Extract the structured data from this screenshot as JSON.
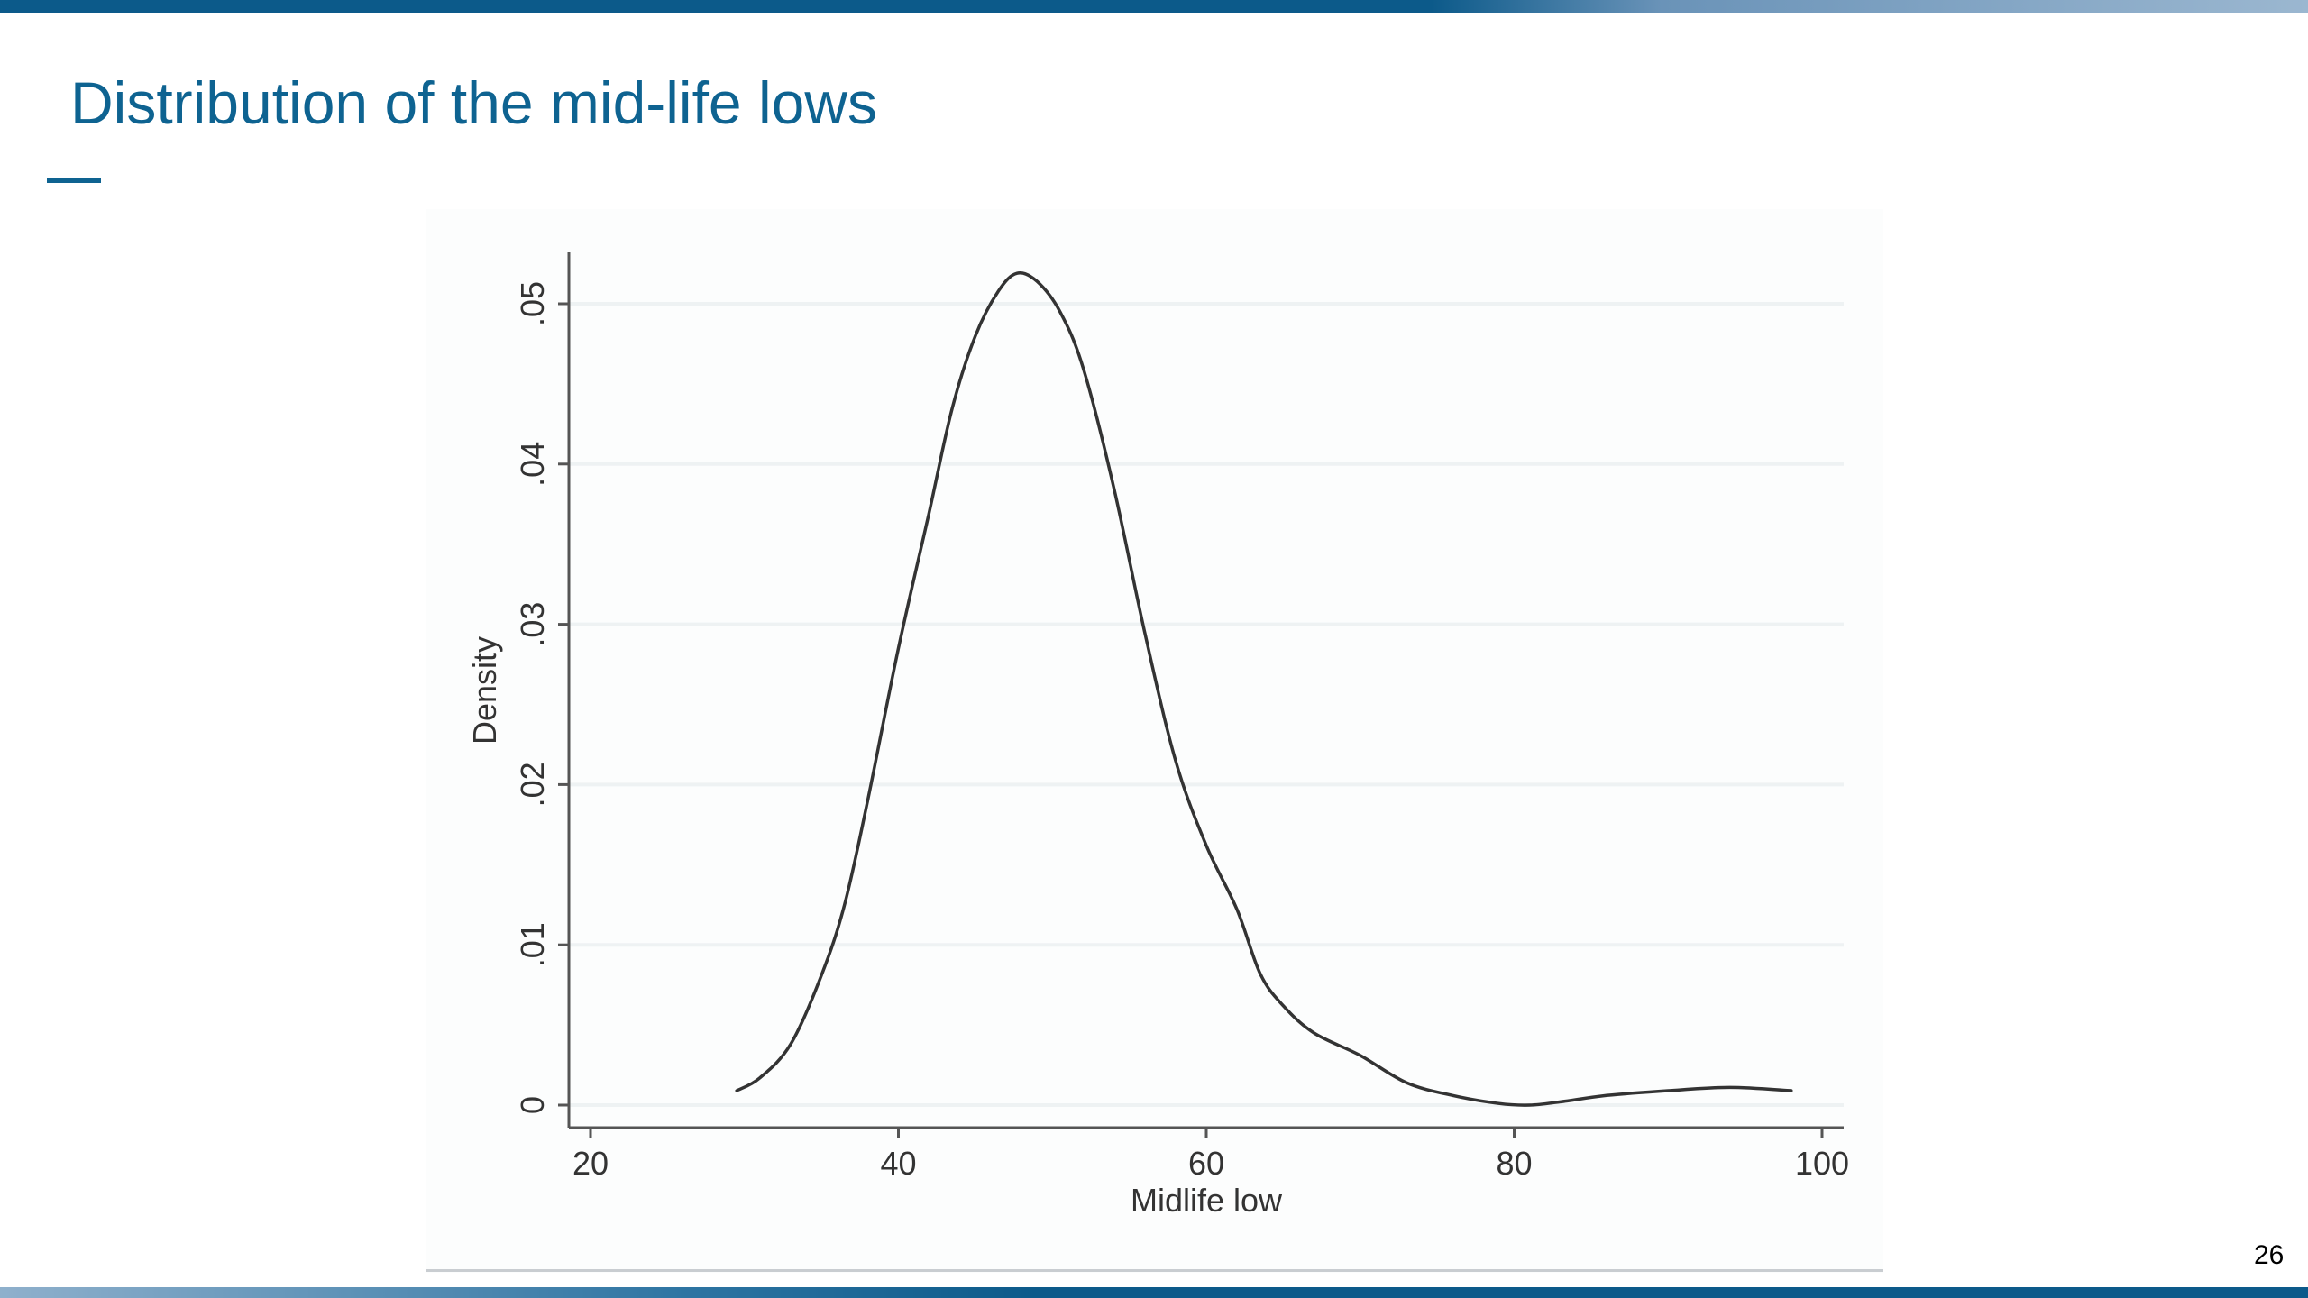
{
  "slide": {
    "title": "Distribution of the mid-life lows",
    "page_number": "26"
  },
  "colors": {
    "title": "#0e6391",
    "bar": "#0c5a8a",
    "curve": "#333333",
    "grid": "#eef2f3"
  },
  "chart_data": {
    "type": "line",
    "title": "",
    "xlabel": "Midlife low",
    "ylabel": "Density",
    "xlim": [
      20,
      100
    ],
    "ylim": [
      0,
      0.05
    ],
    "x_ticks": [
      20,
      40,
      60,
      80,
      100
    ],
    "x_tick_labels": [
      "20",
      "40",
      "60",
      "80",
      "100"
    ],
    "y_ticks": [
      0,
      0.01,
      0.02,
      0.03,
      0.04,
      0.05
    ],
    "y_tick_labels": [
      "0",
      ".01",
      ".02",
      ".03",
      ".04",
      ".05"
    ],
    "grid": true,
    "legend": "none",
    "series": [
      {
        "x": [
          29.5,
          31,
          33,
          35,
          36.5,
          38,
          40,
          42,
          43.5,
          45,
          46.5,
          47.7,
          49,
          50.5,
          52,
          54,
          56,
          58,
          60,
          62,
          63.5,
          65,
          67,
          70,
          73,
          76,
          79,
          81,
          83,
          86,
          90,
          94,
          98
        ],
        "y": [
          0.0009,
          0.0017,
          0.0038,
          0.0081,
          0.0125,
          0.019,
          0.0285,
          0.037,
          0.0435,
          0.048,
          0.0508,
          0.0519,
          0.0514,
          0.0495,
          0.046,
          0.0385,
          0.0295,
          0.0215,
          0.0162,
          0.0122,
          0.0082,
          0.0062,
          0.0045,
          0.0031,
          0.0014,
          0.0006,
          0.0001,
          0.0,
          0.0002,
          0.0006,
          0.0009,
          0.0011,
          0.0009
        ]
      }
    ]
  }
}
